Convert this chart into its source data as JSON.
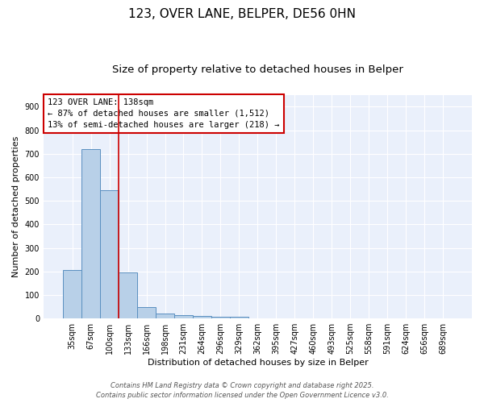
{
  "title_line1": "123, OVER LANE, BELPER, DE56 0HN",
  "title_line2": "Size of property relative to detached houses in Belper",
  "xlabel": "Distribution of detached houses by size in Belper",
  "ylabel": "Number of detached properties",
  "bar_labels": [
    "35sqm",
    "67sqm",
    "100sqm",
    "133sqm",
    "166sqm",
    "198sqm",
    "231sqm",
    "264sqm",
    "296sqm",
    "329sqm",
    "362sqm",
    "395sqm",
    "427sqm",
    "460sqm",
    "493sqm",
    "525sqm",
    "558sqm",
    "591sqm",
    "624sqm",
    "656sqm",
    "689sqm"
  ],
  "bar_values": [
    205,
    720,
    545,
    197,
    47,
    20,
    14,
    12,
    8,
    7,
    0,
    0,
    0,
    0,
    0,
    0,
    0,
    0,
    0,
    0,
    0
  ],
  "bar_color": "#b8d0e8",
  "bar_edge_color": "#5a8fc0",
  "vline_color": "#cc0000",
  "annotation_text": "123 OVER LANE: 138sqm\n← 87% of detached houses are smaller (1,512)\n13% of semi-detached houses are larger (218) →",
  "annotation_box_color": "#cc0000",
  "ylim": [
    0,
    950
  ],
  "yticks": [
    0,
    100,
    200,
    300,
    400,
    500,
    600,
    700,
    800,
    900
  ],
  "background_color": "#eaf0fb",
  "grid_color": "#ffffff",
  "footer_line1": "Contains HM Land Registry data © Crown copyright and database right 2025.",
  "footer_line2": "Contains public sector information licensed under the Open Government Licence v3.0.",
  "title_fontsize": 11,
  "subtitle_fontsize": 9.5,
  "axis_label_fontsize": 8,
  "tick_fontsize": 7,
  "annotation_fontsize": 7.5,
  "footer_fontsize": 6
}
